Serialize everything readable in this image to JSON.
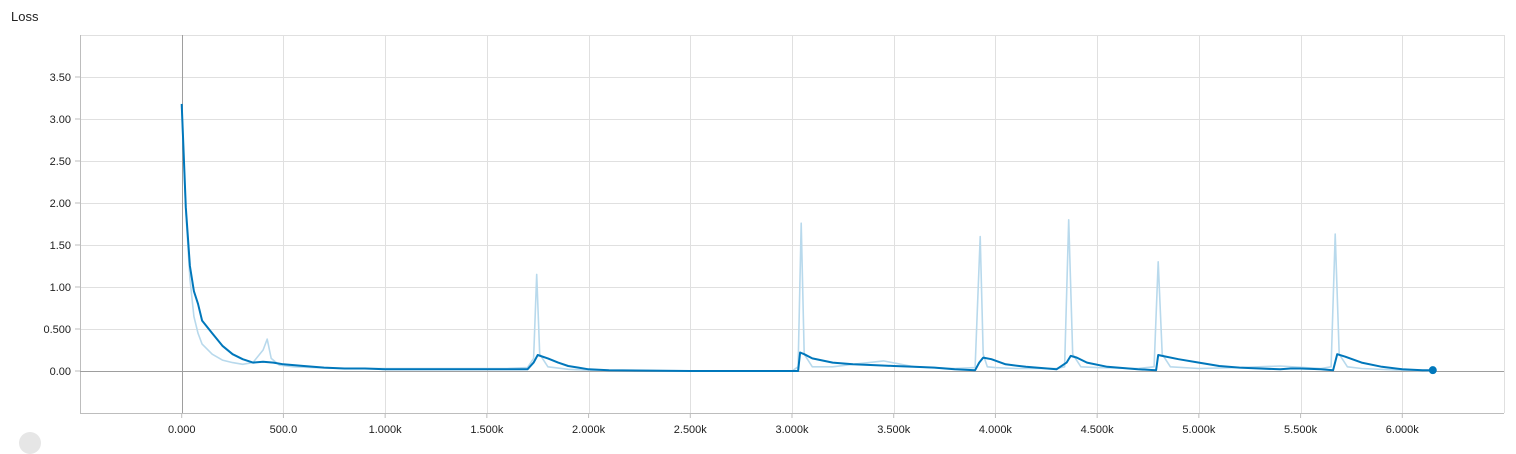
{
  "chart_title": "Loss",
  "colors": {
    "series_line": "#0077bb",
    "raw_line": "#b8d9ec",
    "grid": "#e0e0e0",
    "axis": "#9e9e9e"
  },
  "chart_data": {
    "type": "line",
    "title": "Loss",
    "xlabel": "",
    "ylabel": "",
    "xlim": [
      -500,
      6500
    ],
    "ylim": [
      -0.5,
      4.0
    ],
    "grid": true,
    "x_tick_labels": [
      "0.000",
      "500.0",
      "1.000k",
      "1.500k",
      "2.000k",
      "2.500k",
      "3.000k",
      "3.500k",
      "4.000k",
      "4.500k",
      "5.000k",
      "5.500k",
      "6.000k"
    ],
    "x_tick_values": [
      0,
      500,
      1000,
      1500,
      2000,
      2500,
      3000,
      3500,
      4000,
      4500,
      5000,
      5500,
      6000
    ],
    "y_tick_labels": [
      "0.00",
      "0.500",
      "1.00",
      "1.50",
      "2.00",
      "2.50",
      "3.00",
      "3.50"
    ],
    "y_tick_values": [
      0,
      0.5,
      1.0,
      1.5,
      2.0,
      2.5,
      3.0,
      3.5
    ],
    "series": [
      {
        "role": "raw",
        "x": [
          0,
          20,
          40,
          60,
          80,
          100,
          150,
          200,
          250,
          300,
          350,
          400,
          420,
          440,
          480,
          550,
          650,
          800,
          1000,
          1200,
          1400,
          1600,
          1700,
          1730,
          1745,
          1760,
          1800,
          1900,
          2000,
          2500,
          3000,
          3030,
          3045,
          3060,
          3100,
          3200,
          3300,
          3450,
          3600,
          3800,
          3900,
          3925,
          3940,
          3960,
          4000,
          4100,
          4300,
          4340,
          4360,
          4380,
          4420,
          4500,
          4700,
          4780,
          4800,
          4820,
          4860,
          5000,
          5200,
          5400,
          5600,
          5650,
          5670,
          5690,
          5730,
          5800,
          6000,
          6150
        ],
        "y": [
          3.15,
          1.9,
          1.1,
          0.65,
          0.45,
          0.32,
          0.2,
          0.13,
          0.1,
          0.08,
          0.1,
          0.25,
          0.38,
          0.15,
          0.07,
          0.05,
          0.04,
          0.03,
          0.03,
          0.03,
          0.03,
          0.03,
          0.04,
          0.15,
          1.15,
          0.2,
          0.05,
          0.02,
          0.01,
          0.0,
          0.0,
          0.05,
          1.76,
          0.2,
          0.05,
          0.05,
          0.08,
          0.12,
          0.05,
          0.03,
          0.04,
          1.6,
          0.2,
          0.05,
          0.04,
          0.03,
          0.03,
          0.05,
          1.8,
          0.2,
          0.05,
          0.04,
          0.03,
          0.05,
          1.3,
          0.2,
          0.05,
          0.03,
          0.04,
          0.06,
          0.03,
          0.05,
          1.63,
          0.2,
          0.05,
          0.03,
          0.01,
          0.0
        ]
      },
      {
        "role": "smoothed",
        "x": [
          0,
          20,
          40,
          60,
          80,
          100,
          150,
          200,
          250,
          300,
          350,
          400,
          450,
          500,
          600,
          700,
          800,
          900,
          1000,
          1200,
          1400,
          1600,
          1700,
          1730,
          1750,
          1800,
          1850,
          1900,
          1950,
          2000,
          2100,
          2500,
          2900,
          3030,
          3040,
          3060,
          3100,
          3200,
          3300,
          3400,
          3500,
          3600,
          3700,
          3800,
          3900,
          3920,
          3940,
          3980,
          4050,
          4150,
          4300,
          4350,
          4370,
          4400,
          4450,
          4550,
          4700,
          4790,
          4800,
          4820,
          4900,
          5000,
          5100,
          5200,
          5300,
          5400,
          5450,
          5500,
          5600,
          5660,
          5680,
          5720,
          5800,
          5900,
          6000,
          6100,
          6150
        ],
        "y": [
          3.18,
          1.95,
          1.25,
          0.95,
          0.8,
          0.6,
          0.45,
          0.3,
          0.2,
          0.14,
          0.1,
          0.11,
          0.1,
          0.08,
          0.06,
          0.04,
          0.03,
          0.03,
          0.02,
          0.02,
          0.02,
          0.02,
          0.02,
          0.1,
          0.19,
          0.15,
          0.1,
          0.06,
          0.04,
          0.02,
          0.01,
          0.0,
          0.0,
          0.0,
          0.22,
          0.2,
          0.15,
          0.1,
          0.08,
          0.07,
          0.06,
          0.05,
          0.04,
          0.02,
          0.01,
          0.1,
          0.16,
          0.14,
          0.08,
          0.05,
          0.02,
          0.1,
          0.18,
          0.16,
          0.1,
          0.05,
          0.02,
          0.01,
          0.19,
          0.18,
          0.14,
          0.1,
          0.06,
          0.04,
          0.03,
          0.02,
          0.03,
          0.03,
          0.02,
          0.01,
          0.2,
          0.17,
          0.1,
          0.05,
          0.02,
          0.01,
          0.01
        ]
      }
    ],
    "last_point": {
      "x": 6150,
      "y": 0.01
    }
  }
}
